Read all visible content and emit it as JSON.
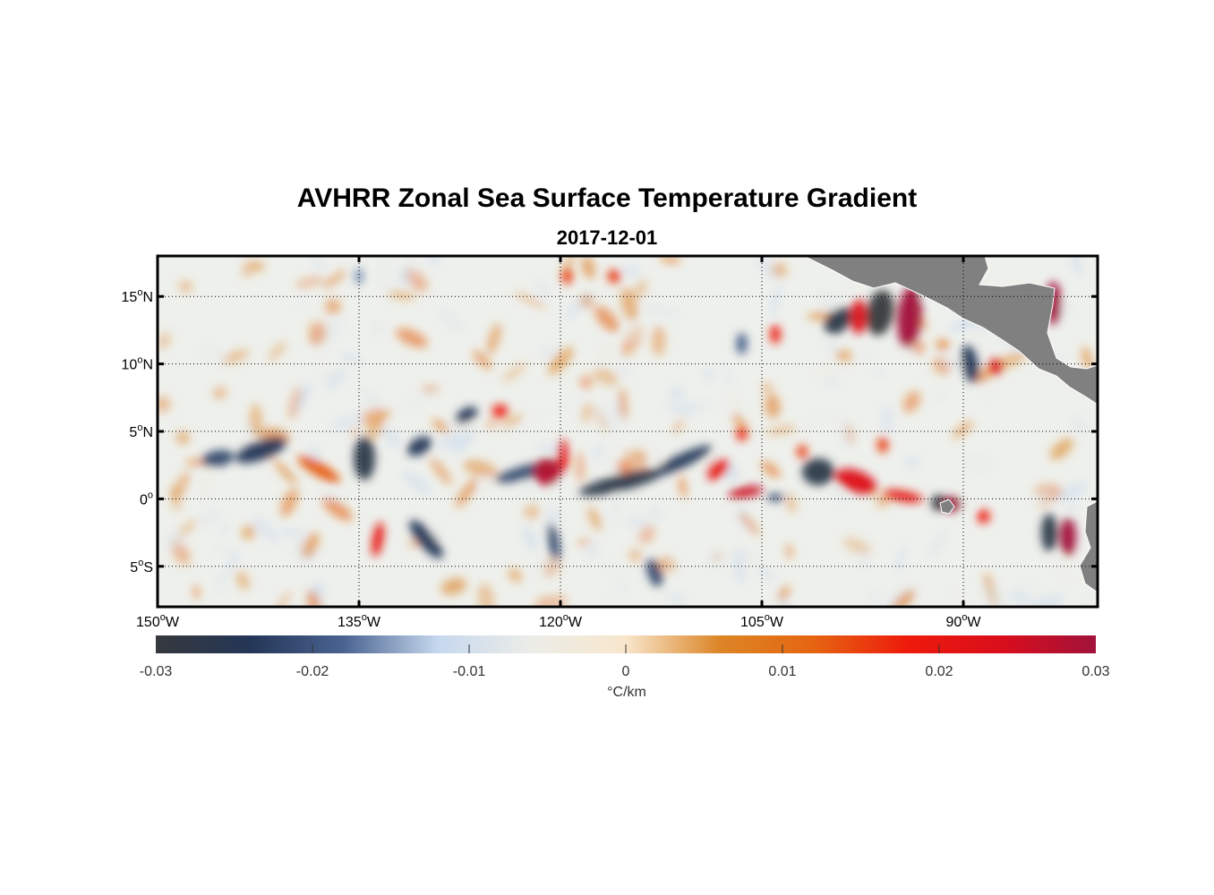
{
  "title": "AVHRR Zonal Sea Surface Temperature Gradient",
  "subtitle": "2017-12-01",
  "map": {
    "lon_range": [
      -150,
      -80
    ],
    "lat_range": [
      -8,
      18
    ],
    "land_color": "#808080",
    "grid": "dotted",
    "x_ticks": [
      {
        "value": -150,
        "label": "150",
        "suffix": "W"
      },
      {
        "value": -135,
        "label": "135",
        "suffix": "W"
      },
      {
        "value": -120,
        "label": "120",
        "suffix": "W"
      },
      {
        "value": -105,
        "label": "105",
        "suffix": "W"
      },
      {
        "value": -90,
        "label": "90",
        "suffix": "W"
      }
    ],
    "y_ticks": [
      {
        "value": 15,
        "label": "15",
        "suffix": "N"
      },
      {
        "value": 10,
        "label": "10",
        "suffix": "N"
      },
      {
        "value": 5,
        "label": "5",
        "suffix": "N"
      },
      {
        "value": 0,
        "label": "0",
        "suffix": ""
      },
      {
        "value": -5,
        "label": "5",
        "suffix": "S"
      }
    ]
  },
  "colorbar": {
    "range": [
      -0.03,
      0.03
    ],
    "ticks": [
      "-0.03",
      "-0.02",
      "-0.01",
      "0",
      "0.01",
      "0.02",
      "0.03"
    ],
    "unit_label": "°C/km",
    "colors": [
      "#36393d",
      "#243657",
      "#4a6391",
      "#c6d8ee",
      "#ecede8",
      "#f8e6cc",
      "#dc8526",
      "#e56512",
      "#ee1a0b",
      "#d90e1c",
      "#a1123a"
    ]
  },
  "features": [
    {
      "type": "neg",
      "lon": -142.3,
      "lat": 3.6,
      "rx": 2.0,
      "ry": 0.7,
      "rot": -20,
      "v": 0.9
    },
    {
      "type": "neg",
      "lon": -145.5,
      "lat": 3.0,
      "rx": 1.2,
      "ry": 0.6,
      "rot": -10,
      "v": 0.8
    },
    {
      "type": "pos",
      "lon": -138.0,
      "lat": 2.2,
      "rx": 1.8,
      "ry": 0.5,
      "rot": 30,
      "v": 0.5
    },
    {
      "type": "neg",
      "lon": -134.6,
      "lat": 3.0,
      "rx": 0.8,
      "ry": 1.6,
      "rot": 0,
      "v": 1.0
    },
    {
      "type": "neg",
      "lon": -130.5,
      "lat": 3.9,
      "rx": 1.0,
      "ry": 0.6,
      "rot": -30,
      "v": 0.9
    },
    {
      "type": "neg",
      "lon": -127.0,
      "lat": 6.2,
      "rx": 0.9,
      "ry": 0.5,
      "rot": -30,
      "v": 0.9
    },
    {
      "type": "pos",
      "lon": -124.5,
      "lat": 6.5,
      "rx": 0.6,
      "ry": 0.5,
      "rot": 0,
      "v": 0.7
    },
    {
      "type": "neg",
      "lon": -122.5,
      "lat": 2.0,
      "rx": 2.5,
      "ry": 0.5,
      "rot": -15,
      "v": 0.8
    },
    {
      "type": "pos",
      "lon": -121.0,
      "lat": 2.0,
      "rx": 1.0,
      "ry": 1.0,
      "rot": 0,
      "v": 1.1
    },
    {
      "type": "pos",
      "lon": -119.8,
      "lat": 3.2,
      "rx": 0.4,
      "ry": 1.2,
      "rot": 0,
      "v": 0.8
    },
    {
      "type": "neg",
      "lon": -115.5,
      "lat": 1.2,
      "rx": 3.2,
      "ry": 0.6,
      "rot": -14,
      "v": 1.0
    },
    {
      "type": "neg",
      "lon": -111.0,
      "lat": 2.8,
      "rx": 2.5,
      "ry": 0.5,
      "rot": -25,
      "v": 0.9
    },
    {
      "type": "pos",
      "lon": -108.3,
      "lat": 2.2,
      "rx": 1.0,
      "ry": 0.6,
      "rot": -40,
      "v": 0.8
    },
    {
      "type": "pos",
      "lon": -106.2,
      "lat": 0.5,
      "rx": 1.3,
      "ry": 0.4,
      "rot": -10,
      "v": 1.0
    },
    {
      "type": "neg",
      "lon": -104.0,
      "lat": 0.1,
      "rx": 0.6,
      "ry": 0.3,
      "rot": 0,
      "v": 0.8
    },
    {
      "type": "neg",
      "lon": -100.8,
      "lat": 2.0,
      "rx": 1.2,
      "ry": 1.0,
      "rot": 0,
      "v": 1.0
    },
    {
      "type": "pos",
      "lon": -98.0,
      "lat": 1.3,
      "rx": 1.6,
      "ry": 0.8,
      "rot": 20,
      "v": 0.9
    },
    {
      "type": "pos",
      "lon": -94.5,
      "lat": 0.2,
      "rx": 1.5,
      "ry": 0.4,
      "rot": 10,
      "v": 0.8
    },
    {
      "type": "neg",
      "lon": -91.8,
      "lat": -0.3,
      "rx": 0.6,
      "ry": 0.6,
      "rot": 0,
      "v": 1.1
    },
    {
      "type": "pos",
      "lon": -90.8,
      "lat": -0.4,
      "rx": 0.7,
      "ry": 0.6,
      "rot": 0,
      "v": 1.2
    },
    {
      "type": "neg",
      "lon": -99.3,
      "lat": 13.2,
      "rx": 1.2,
      "ry": 0.8,
      "rot": -40,
      "v": 1.0
    },
    {
      "type": "neg",
      "lon": -96.2,
      "lat": 13.8,
      "rx": 1.0,
      "ry": 1.7,
      "rot": 10,
      "v": 1.3
    },
    {
      "type": "pos",
      "lon": -97.8,
      "lat": 13.5,
      "rx": 0.6,
      "ry": 1.3,
      "rot": 0,
      "v": 0.9
    },
    {
      "type": "pos",
      "lon": -94.0,
      "lat": 13.5,
      "rx": 0.9,
      "ry": 2.3,
      "rot": 5,
      "v": 1.4
    },
    {
      "type": "neg",
      "lon": -89.5,
      "lat": 10.0,
      "rx": 0.6,
      "ry": 1.4,
      "rot": -10,
      "v": 0.9
    },
    {
      "type": "pos",
      "lon": -87.6,
      "lat": 9.8,
      "rx": 0.5,
      "ry": 0.6,
      "rot": 0,
      "v": 0.9
    },
    {
      "type": "pos",
      "lon": -83.3,
      "lat": 14.5,
      "rx": 0.6,
      "ry": 1.6,
      "rot": 0,
      "v": 1.2
    },
    {
      "type": "neg",
      "lon": -83.6,
      "lat": -2.5,
      "rx": 0.6,
      "ry": 1.4,
      "rot": 0,
      "v": 1.0
    },
    {
      "type": "pos",
      "lon": -82.2,
      "lat": -2.8,
      "rx": 0.6,
      "ry": 1.4,
      "rot": 0,
      "v": 1.3
    },
    {
      "type": "neg",
      "lon": -130.0,
      "lat": -3.0,
      "rx": 1.8,
      "ry": 0.6,
      "rot": 50,
      "v": 0.9
    },
    {
      "type": "pos",
      "lon": -133.6,
      "lat": -3.0,
      "rx": 0.4,
      "ry": 1.3,
      "rot": 10,
      "v": 0.8
    },
    {
      "type": "neg",
      "lon": -120.5,
      "lat": -3.2,
      "rx": 0.4,
      "ry": 1.4,
      "rot": -10,
      "v": 0.8
    },
    {
      "type": "neg",
      "lon": -113.0,
      "lat": -5.5,
      "rx": 0.5,
      "ry": 1.1,
      "rot": -20,
      "v": 0.8
    },
    {
      "type": "pos",
      "lon": -106.5,
      "lat": 4.8,
      "rx": 0.4,
      "ry": 0.5,
      "rot": 0,
      "v": 0.7
    },
    {
      "type": "neg",
      "lon": -106.5,
      "lat": 11.5,
      "rx": 0.4,
      "ry": 0.8,
      "rot": 0,
      "v": 0.7
    },
    {
      "type": "pos",
      "lon": -104.0,
      "lat": 12.2,
      "rx": 0.4,
      "ry": 0.7,
      "rot": 0,
      "v": 0.7
    },
    {
      "type": "pos",
      "lon": -102.0,
      "lat": 3.5,
      "rx": 0.4,
      "ry": 0.5,
      "rot": 0,
      "v": 0.6
    },
    {
      "type": "pos",
      "lon": -96.0,
      "lat": 4.0,
      "rx": 0.4,
      "ry": 0.6,
      "rot": 0,
      "v": 0.6
    },
    {
      "type": "pos",
      "lon": -119.5,
      "lat": 16.5,
      "rx": 0.4,
      "ry": 0.6,
      "rot": 0,
      "v": 0.6
    },
    {
      "type": "pos",
      "lon": -116.0,
      "lat": 16.5,
      "rx": 0.5,
      "ry": 0.5,
      "rot": 0,
      "v": 0.6
    },
    {
      "type": "neg",
      "lon": -135.0,
      "lat": 16.5,
      "rx": 0.3,
      "ry": 0.6,
      "rot": 0,
      "v": 0.6
    },
    {
      "type": "pos",
      "lon": -88.5,
      "lat": -1.3,
      "rx": 0.5,
      "ry": 0.5,
      "rot": 0,
      "v": 0.7
    }
  ]
}
